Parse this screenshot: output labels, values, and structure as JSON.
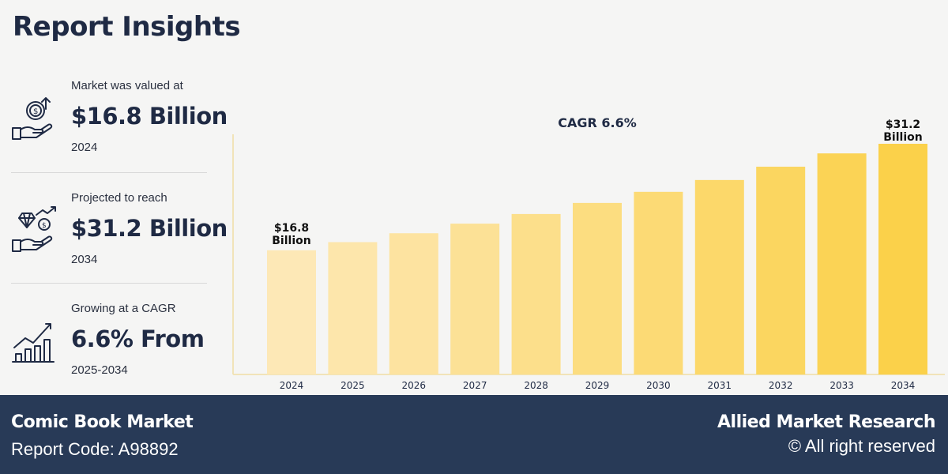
{
  "header": {
    "title": "Report Insights"
  },
  "stats": [
    {
      "label": "Market was valued at",
      "value": "$16.8 Billion",
      "year": "2024",
      "icon": "money-hand-growth-icon"
    },
    {
      "label": "Projected to reach",
      "value": "$31.2 Billion",
      "year": "2034",
      "icon": "diamond-hand-growth-icon"
    },
    {
      "label": "Growing at a CAGR",
      "value": "6.6% From",
      "year": "2025-2034",
      "icon": "bar-chart-growth-icon"
    }
  ],
  "chart_data": {
    "type": "bar",
    "title": "CAGR 6.6%",
    "categories": [
      "2024",
      "2025",
      "2026",
      "2027",
      "2028",
      "2029",
      "2030",
      "2031",
      "2032",
      "2033",
      "2034"
    ],
    "values": [
      16.8,
      17.9,
      19.1,
      20.4,
      21.7,
      23.2,
      24.7,
      26.3,
      28.1,
      29.9,
      31.2
    ],
    "data_labels": {
      "first": [
        "$16.8",
        "Billion"
      ],
      "last": [
        "$31.2",
        "Billion"
      ]
    },
    "xlabel": "",
    "ylabel": "",
    "colors": [
      "#fde8b6",
      "#fbd14a"
    ]
  },
  "footer": {
    "market": "Comic Book Market",
    "report_code": "Report Code: A98892",
    "brand": "Allied Market Research",
    "rights": "© All right reserved"
  }
}
